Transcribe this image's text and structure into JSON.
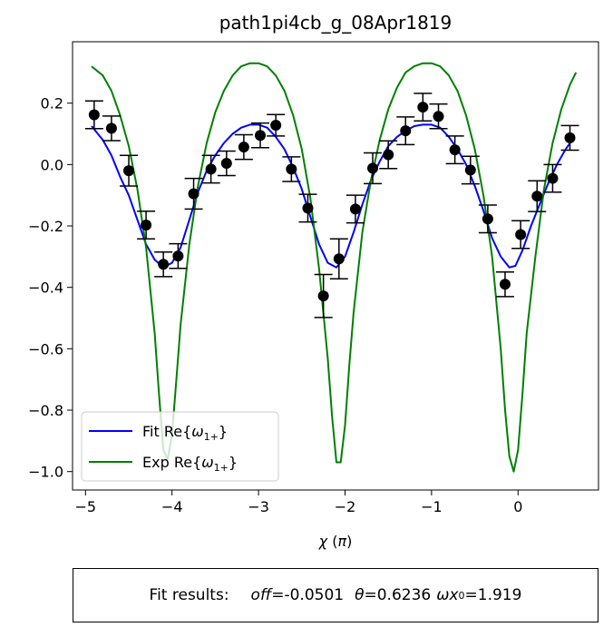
{
  "chart_data": {
    "type": "line",
    "title": "path1pi4cb_g_08Apr1819",
    "xlabel": "χ (π)",
    "ylabel": "",
    "xlim": [
      -5.15,
      0.93
    ],
    "ylim": [
      -1.06,
      0.4
    ],
    "xticks": [
      -5,
      -4,
      -3,
      -2,
      -1,
      0
    ],
    "xtick_labels": [
      "−5",
      "−4",
      "−3",
      "−2",
      "−1",
      "0"
    ],
    "yticks": [
      0.2,
      0.0,
      -0.2,
      -0.4,
      -0.6,
      -0.8,
      -1.0
    ],
    "ytick_labels": [
      "0.2",
      "0.0",
      "−0.2",
      "−0.4",
      "−0.6",
      "−0.8",
      "−1.0"
    ],
    "grid": false,
    "legend_position": "lower-left",
    "series": [
      {
        "name": "Fit Re{ω1+}",
        "kind": "line",
        "color": "#0000ff",
        "x": [
          -4.93,
          -4.8,
          -4.7,
          -4.6,
          -4.5,
          -4.4,
          -4.3,
          -4.2,
          -4.1,
          -4.0,
          -3.9,
          -3.8,
          -3.7,
          -3.6,
          -3.5,
          -3.4,
          -3.3,
          -3.2,
          -3.1,
          -3.0,
          -2.9,
          -2.8,
          -2.7,
          -2.6,
          -2.5,
          -2.4,
          -2.3,
          -2.2,
          -2.1,
          -2.0,
          -1.9,
          -1.8,
          -1.7,
          -1.6,
          -1.5,
          -1.4,
          -1.3,
          -1.2,
          -1.1,
          -1.0,
          -0.9,
          -0.8,
          -0.7,
          -0.6,
          -0.5,
          -0.4,
          -0.3,
          -0.2,
          -0.1,
          -0.03,
          0.05,
          0.15,
          0.25,
          0.35,
          0.45,
          0.55,
          0.65
        ],
        "y": [
          0.125,
          0.08,
          0.03,
          -0.04,
          -0.1,
          -0.18,
          -0.26,
          -0.31,
          -0.335,
          -0.32,
          -0.27,
          -0.18,
          -0.09,
          -0.02,
          0.03,
          0.07,
          0.1,
          0.12,
          0.13,
          0.13,
          0.12,
          0.09,
          0.05,
          -0.01,
          -0.08,
          -0.17,
          -0.26,
          -0.32,
          -0.335,
          -0.3,
          -0.22,
          -0.13,
          -0.05,
          0.01,
          0.06,
          0.09,
          0.11,
          0.125,
          0.13,
          0.13,
          0.12,
          0.09,
          0.05,
          0.0,
          -0.07,
          -0.15,
          -0.24,
          -0.3,
          -0.335,
          -0.33,
          -0.28,
          -0.2,
          -0.13,
          -0.06,
          0.0,
          0.05,
          0.09
        ]
      },
      {
        "name": "Exp Re{ω1+}",
        "kind": "line",
        "color": "#008000",
        "x": [
          -4.93,
          -4.8,
          -4.7,
          -4.6,
          -4.5,
          -4.4,
          -4.3,
          -4.2,
          -4.15,
          -4.1,
          -4.05,
          -4.0,
          -3.95,
          -3.9,
          -3.8,
          -3.7,
          -3.6,
          -3.5,
          -3.4,
          -3.3,
          -3.2,
          -3.1,
          -3.0,
          -2.9,
          -2.8,
          -2.7,
          -2.6,
          -2.5,
          -2.4,
          -2.3,
          -2.2,
          -2.15,
          -2.1,
          -2.05,
          -2.0,
          -1.95,
          -1.9,
          -1.8,
          -1.7,
          -1.6,
          -1.5,
          -1.4,
          -1.3,
          -1.2,
          -1.1,
          -1.0,
          -0.9,
          -0.8,
          -0.7,
          -0.6,
          -0.5,
          -0.4,
          -0.3,
          -0.2,
          -0.15,
          -0.1,
          -0.05,
          0.0,
          0.05,
          0.1,
          0.2,
          0.3,
          0.4,
          0.5,
          0.6,
          0.67
        ],
        "y": [
          0.32,
          0.29,
          0.24,
          0.16,
          0.06,
          -0.08,
          -0.27,
          -0.55,
          -0.75,
          -0.93,
          -0.96,
          -0.88,
          -0.7,
          -0.52,
          -0.26,
          -0.07,
          0.07,
          0.17,
          0.24,
          0.29,
          0.32,
          0.33,
          0.33,
          0.32,
          0.29,
          0.24,
          0.16,
          0.05,
          -0.11,
          -0.34,
          -0.63,
          -0.82,
          -0.97,
          -0.97,
          -0.85,
          -0.65,
          -0.48,
          -0.22,
          -0.05,
          0.08,
          0.18,
          0.25,
          0.3,
          0.32,
          0.33,
          0.33,
          0.32,
          0.29,
          0.24,
          0.16,
          0.05,
          -0.1,
          -0.3,
          -0.6,
          -0.8,
          -0.95,
          -1.0,
          -0.93,
          -0.75,
          -0.55,
          -0.3,
          -0.08,
          0.07,
          0.18,
          0.26,
          0.3
        ]
      },
      {
        "name": "",
        "kind": "errorbar",
        "color": "#000000",
        "x": [
          -4.9,
          -4.7,
          -4.5,
          -4.3,
          -4.1,
          -3.93,
          -3.75,
          -3.55,
          -3.37,
          -3.17,
          -2.98,
          -2.8,
          -2.62,
          -2.43,
          -2.25,
          -2.07,
          -1.88,
          -1.68,
          -1.5,
          -1.3,
          -1.1,
          -0.92,
          -0.73,
          -0.55,
          -0.35,
          -0.15,
          0.03,
          0.22,
          0.4,
          0.6
        ],
        "y": [
          0.162,
          0.118,
          -0.02,
          -0.197,
          -0.325,
          -0.298,
          -0.095,
          -0.015,
          0.004,
          0.057,
          0.095,
          0.128,
          -0.015,
          -0.142,
          -0.428,
          -0.307,
          -0.145,
          -0.012,
          0.032,
          0.11,
          0.187,
          0.157,
          0.048,
          -0.018,
          -0.177,
          -0.39,
          -0.228,
          -0.103,
          -0.045,
          0.087
        ],
        "err": [
          0.045,
          0.04,
          0.05,
          0.045,
          0.04,
          0.04,
          0.05,
          0.045,
          0.04,
          0.04,
          0.04,
          0.035,
          0.04,
          0.045,
          0.07,
          0.065,
          0.045,
          0.05,
          0.045,
          0.045,
          0.045,
          0.04,
          0.045,
          0.045,
          0.045,
          0.04,
          0.045,
          0.05,
          0.045,
          0.04
        ]
      }
    ]
  },
  "results": {
    "prefix": "Fit results:",
    "off_label": "off",
    "off_value": "=-0.0501",
    "theta_label": "θ",
    "theta_value": "=0.6236",
    "omega_label": "ωx",
    "omega_sub": "0",
    "omega_value": "=1.919"
  }
}
